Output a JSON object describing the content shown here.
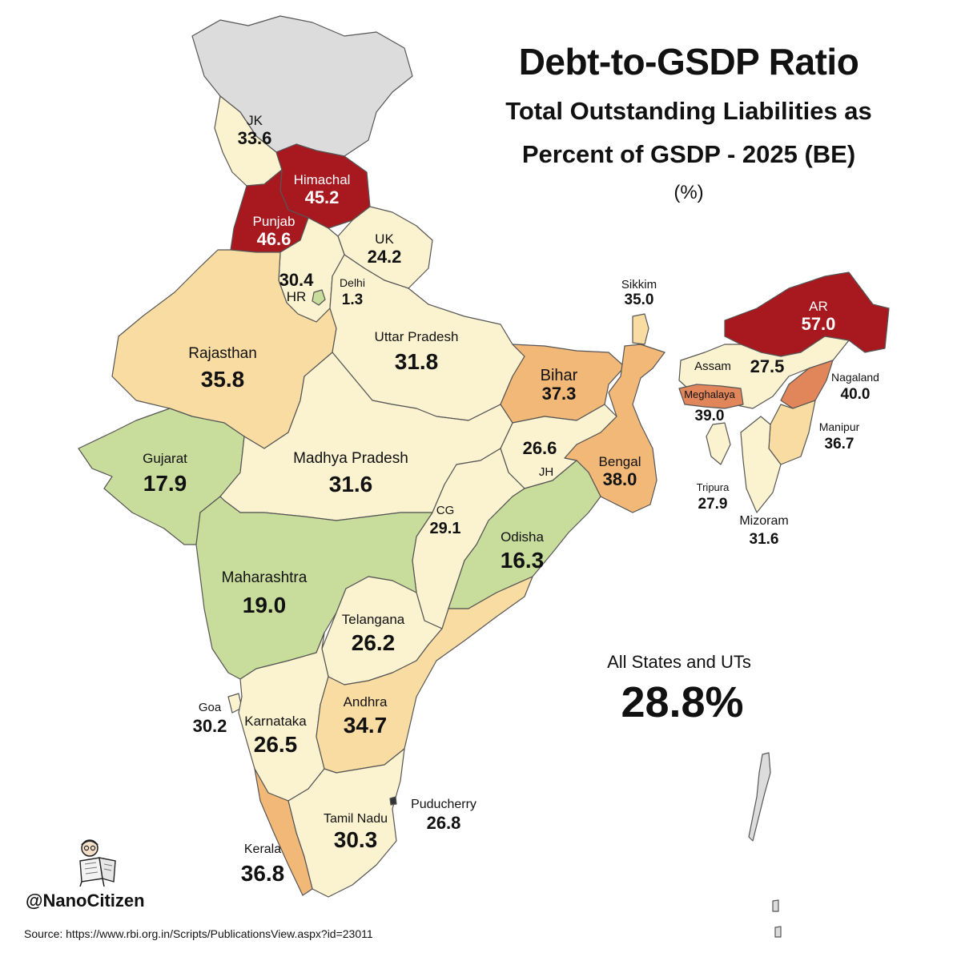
{
  "title": "Debt-to-GSDP Ratio",
  "subtitle_line1": "Total Outstanding Liabilities as",
  "subtitle_line2": "Percent of GSDP - 2025 (BE)",
  "unit": "(%)",
  "summary": {
    "label": "All States and UTs",
    "value": "28.8%"
  },
  "handle": "@NanoCitizen",
  "source": "Source: https://www.rbi.org.in/Scripts/PublicationsView.aspx?id=23011",
  "colors": {
    "very_high": "#a8191f",
    "high": "#e0865a",
    "mid_high": "#f1b878",
    "mid": "#f9dca2",
    "low_mid": "#fbf2cf",
    "low": "#c8dc9c",
    "no_data": "#dcdcdc",
    "border": "#555555"
  },
  "map": {
    "regions": [
      {
        "id": "jk",
        "label": "JK",
        "value": "33.6"
      },
      {
        "id": "himachal",
        "label": "Himachal",
        "value": "45.2"
      },
      {
        "id": "punjab",
        "label": "Punjab",
        "value": "46.6"
      },
      {
        "id": "uk",
        "label": "UK",
        "value": "24.2"
      },
      {
        "id": "haryana",
        "label": "HR",
        "value": "30.4"
      },
      {
        "id": "delhi",
        "label": "Delhi",
        "value": "1.3"
      },
      {
        "id": "rajasthan",
        "label": "Rajasthan",
        "value": "35.8"
      },
      {
        "id": "up",
        "label": "Uttar Pradesh",
        "value": "31.8"
      },
      {
        "id": "bihar",
        "label": "Bihar",
        "value": "37.3"
      },
      {
        "id": "sikkim",
        "label": "Sikkim",
        "value": "35.0"
      },
      {
        "id": "ar",
        "label": "AR",
        "value": "57.0"
      },
      {
        "id": "assam",
        "label": "Assam",
        "value": "27.5"
      },
      {
        "id": "nagaland",
        "label": "Nagaland",
        "value": "40.0"
      },
      {
        "id": "meghalaya",
        "label": "Meghalaya",
        "value": "39.0"
      },
      {
        "id": "manipur",
        "label": "Manipur",
        "value": "36.7"
      },
      {
        "id": "tripura",
        "label": "Tripura",
        "value": "27.9"
      },
      {
        "id": "mizoram",
        "label": "Mizoram",
        "value": "31.6"
      },
      {
        "id": "gujarat",
        "label": "Gujarat",
        "value": "17.9"
      },
      {
        "id": "mp",
        "label": "Madhya Pradesh",
        "value": "31.6"
      },
      {
        "id": "jharkhand",
        "label": "JH",
        "value": "26.6"
      },
      {
        "id": "bengal",
        "label": "Bengal",
        "value": "38.0"
      },
      {
        "id": "cg",
        "label": "CG",
        "value": "29.1"
      },
      {
        "id": "odisha",
        "label": "Odisha",
        "value": "16.3"
      },
      {
        "id": "maharashtra",
        "label": "Maharashtra",
        "value": "19.0"
      },
      {
        "id": "telangana",
        "label": "Telangana",
        "value": "26.2"
      },
      {
        "id": "goa",
        "label": "Goa",
        "value": "30.2"
      },
      {
        "id": "karnataka",
        "label": "Karnataka",
        "value": "26.5"
      },
      {
        "id": "andhra",
        "label": "Andhra",
        "value": "34.7"
      },
      {
        "id": "puducherry",
        "label": "Puducherry",
        "value": "26.8"
      },
      {
        "id": "tamilnadu",
        "label": "Tamil Nadu",
        "value": "30.3"
      },
      {
        "id": "kerala",
        "label": "Kerala",
        "value": "36.8"
      }
    ]
  }
}
